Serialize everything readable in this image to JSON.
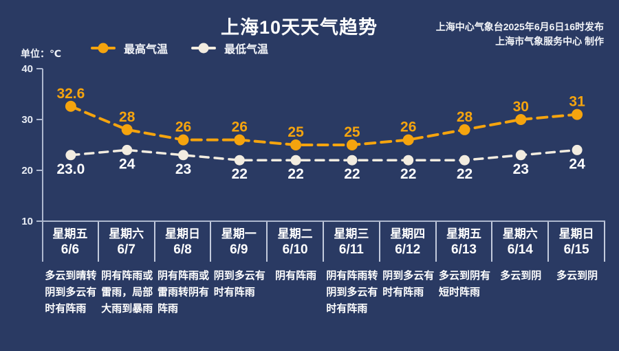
{
  "page": {
    "background": "#2a3a63"
  },
  "header": {
    "title": "上海10天天气趋势",
    "source_line1": "上海中心气象台2025年6月6日16时发布",
    "source_line2": "上海市气象服务中心 制作"
  },
  "unit_label": "单位：℃",
  "colors": {
    "background": "#2a3a63",
    "axis": "#aeb8cf",
    "tick_text": "#e8ecf4",
    "divider": "#c3cbdd",
    "high_series": "#f5a40e",
    "low_series": "#f2ece0",
    "text": "#ffffff"
  },
  "chart_data": {
    "type": "line",
    "title": "上海10天天气趋势",
    "unit": "℃",
    "grid": false,
    "legend_position": "top",
    "yticks": [
      40,
      30,
      20,
      10
    ],
    "ylim": [
      10,
      40
    ],
    "categories": [
      {
        "weekday": "星期五",
        "date": "6/6"
      },
      {
        "weekday": "星期六",
        "date": "6/7"
      },
      {
        "weekday": "星期日",
        "date": "6/8"
      },
      {
        "weekday": "星期一",
        "date": "6/9"
      },
      {
        "weekday": "星期二",
        "date": "6/10"
      },
      {
        "weekday": "星期三",
        "date": "6/11"
      },
      {
        "weekday": "星期四",
        "date": "6/12"
      },
      {
        "weekday": "星期五",
        "date": "6/13"
      },
      {
        "weekday": "星期六",
        "date": "6/14"
      },
      {
        "weekday": "星期日",
        "date": "6/15"
      }
    ],
    "series": [
      {
        "name": "最高气温",
        "color": "#f5a40e",
        "label_position": "above",
        "values": [
          32.6,
          28,
          26,
          26,
          25,
          25,
          26,
          28,
          30,
          31
        ],
        "point_labels": [
          "32.6",
          "28",
          "26",
          "26",
          "25",
          "25",
          "26",
          "28",
          "30",
          "31"
        ]
      },
      {
        "name": "最低气温",
        "color": "#f2ece0",
        "label_position": "below",
        "values": [
          23.0,
          24,
          23,
          22,
          22,
          22,
          22,
          22,
          23,
          24
        ],
        "point_labels": [
          "23.0",
          "24",
          "23",
          "22",
          "22",
          "22",
          "22",
          "22",
          "23",
          "24"
        ]
      }
    ],
    "weather": [
      [
        "多云到晴转",
        "阴到多云有",
        "时有阵雨"
      ],
      [
        "阴有阵雨或",
        "雷雨，局部",
        "大雨到暴雨"
      ],
      [
        "阴有阵雨或",
        "雷雨转阴有",
        "阵雨"
      ],
      [
        "阴到多云有",
        "时有阵雨"
      ],
      [
        "阴有阵雨"
      ],
      [
        "阴有阵雨转",
        "阴到多云有",
        "时有阵雨"
      ],
      [
        "阴到多云有",
        "时有阵雨"
      ],
      [
        "多云到阴有",
        "短时阵雨"
      ],
      [
        "多云到阴"
      ],
      [
        "多云到阴"
      ]
    ]
  }
}
